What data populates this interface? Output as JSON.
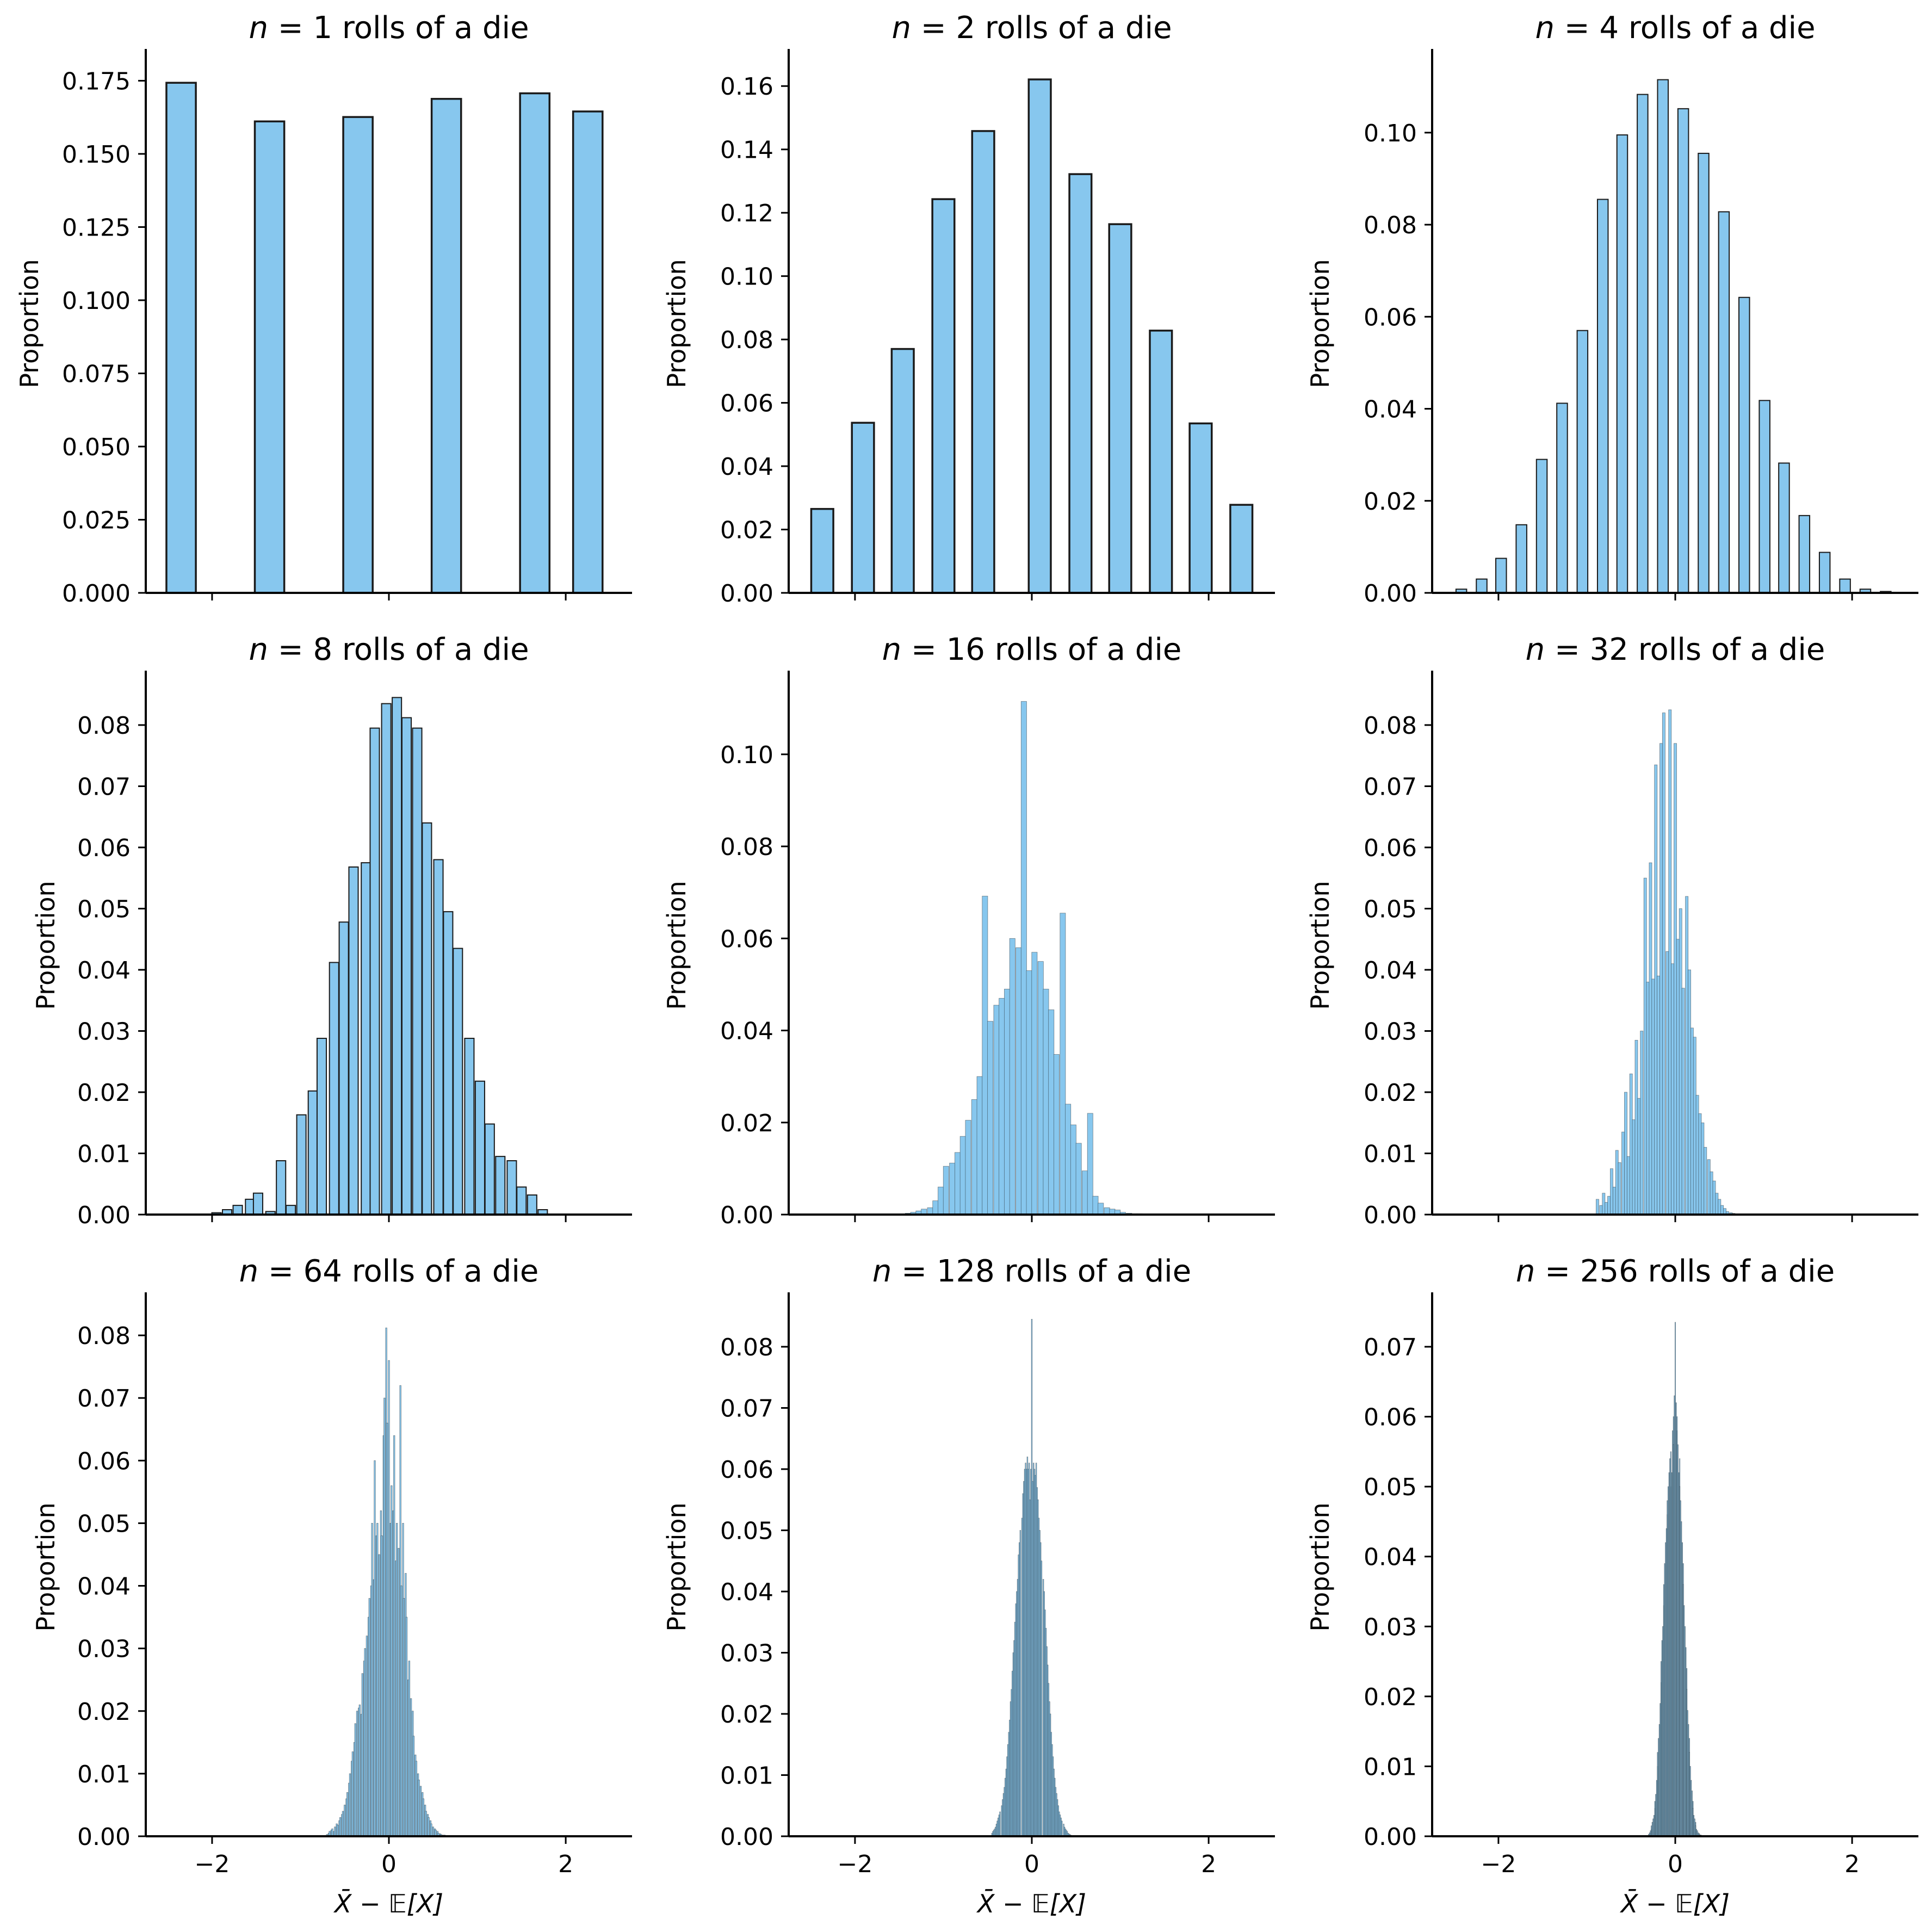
{
  "figure": {
    "bar_fill": "#87C7EE",
    "bar_edge": "#1a1a1a"
  },
  "chart_data": [
    {
      "type": "bar",
      "n": 1,
      "title_prefix": "n",
      "title_suffix": " = 1 rolls of a die",
      "ylabel": "Proportion",
      "xlabel": "",
      "xlim": [
        -2.75,
        2.75
      ],
      "ylim": [
        0,
        0.184
      ],
      "xticks": [
        -2,
        0,
        2
      ],
      "xtick_labels": [
        "",
        "",
        ""
      ],
      "yticks": [
        0,
        0.025,
        0.05,
        0.075,
        0.1,
        0.125,
        0.15,
        0.175
      ],
      "ytick_labels": [
        "0.000",
        "0.025",
        "0.050",
        "0.075",
        "0.100",
        "0.125",
        "0.150",
        "0.175"
      ],
      "bin_width": 0.333,
      "x": [
        -2.35,
        -1.35,
        -0.35,
        0.65,
        1.65,
        2.25
      ],
      "values": [
        0.1743,
        0.1611,
        0.1626,
        0.1688,
        0.1707,
        0.1645
      ]
    },
    {
      "type": "bar",
      "n": 2,
      "title_prefix": "n",
      "title_suffix": " = 2 rolls of a die",
      "ylabel": "Proportion",
      "xlabel": "",
      "xlim": [
        -2.75,
        2.75
      ],
      "ylim": [
        0,
        0.17
      ],
      "xticks": [
        -2,
        0,
        2
      ],
      "xtick_labels": [
        "",
        "",
        ""
      ],
      "yticks": [
        0,
        0.02,
        0.04,
        0.06,
        0.08,
        0.1,
        0.12,
        0.14,
        0.16
      ],
      "ytick_labels": [
        "0.00",
        "0.02",
        "0.04",
        "0.06",
        "0.08",
        "0.10",
        "0.12",
        "0.14",
        "0.16"
      ],
      "bin_width": 0.25,
      "x": [
        -2.37,
        -1.91,
        -1.46,
        -1.0,
        -0.55,
        0.09,
        0.55,
        1.0,
        1.46,
        1.91,
        2.37
      ],
      "values": [
        0.0265,
        0.0537,
        0.077,
        0.1243,
        0.1458,
        0.1621,
        0.1322,
        0.1164,
        0.0828,
        0.0535,
        0.0278
      ]
    },
    {
      "type": "bar",
      "n": 4,
      "title_prefix": "n",
      "title_suffix": " = 4 rolls of a die",
      "ylabel": "Proportion",
      "xlabel": "",
      "xlim": [
        -2.75,
        2.75
      ],
      "ylim": [
        0,
        0.117
      ],
      "xticks": [
        -2,
        0,
        2
      ],
      "xtick_labels": [
        "",
        "",
        ""
      ],
      "yticks": [
        0,
        0.02,
        0.04,
        0.06,
        0.08,
        0.1
      ],
      "ytick_labels": [
        "0.00",
        "0.02",
        "0.04",
        "0.06",
        "0.08",
        "0.10"
      ],
      "bin_width": 0.12,
      "x": [
        -2.42,
        -2.19,
        -1.97,
        -1.74,
        -1.51,
        -1.28,
        -1.05,
        -0.82,
        -0.6,
        -0.37,
        -0.14,
        0.09,
        0.32,
        0.55,
        0.78,
        1.01,
        1.23,
        1.46,
        1.69,
        1.92,
        2.15,
        2.38
      ],
      "values": [
        0.0008,
        0.003,
        0.0075,
        0.0148,
        0.029,
        0.0412,
        0.057,
        0.0855,
        0.0995,
        0.1083,
        0.1115,
        0.1052,
        0.0955,
        0.0828,
        0.0642,
        0.0418,
        0.0282,
        0.0168,
        0.0088,
        0.003,
        0.0008,
        0.0003
      ]
    },
    {
      "type": "bar",
      "n": 8,
      "title_prefix": "n",
      "title_suffix": " = 8 rolls of a die",
      "ylabel": "Proportion",
      "xlabel": "",
      "xlim": [
        -2.75,
        2.75
      ],
      "ylim": [
        0,
        0.088
      ],
      "xticks": [
        -2,
        0,
        2
      ],
      "xtick_labels": [
        "",
        "",
        ""
      ],
      "yticks": [
        0,
        0.01,
        0.02,
        0.03,
        0.04,
        0.05,
        0.06,
        0.07,
        0.08
      ],
      "ytick_labels": [
        "0.00",
        "0.01",
        "0.02",
        "0.03",
        "0.04",
        "0.05",
        "0.06",
        "0.07",
        "0.08"
      ],
      "bin_width": 0.105,
      "x": [
        -1.95,
        -1.83,
        -1.71,
        -1.57,
        -1.48,
        -1.34,
        -1.22,
        -1.11,
        -0.99,
        -0.86,
        -0.76,
        -0.62,
        -0.51,
        -0.4,
        -0.26,
        -0.16,
        -0.03,
        0.09,
        0.2,
        0.32,
        0.43,
        0.56,
        0.67,
        0.78,
        0.91,
        1.03,
        1.14,
        1.26,
        1.39,
        1.5,
        1.62,
        1.74
      ],
      "values": [
        0.0003,
        0.0008,
        0.0015,
        0.0025,
        0.0035,
        0.0005,
        0.0088,
        0.0015,
        0.0163,
        0.0202,
        0.0288,
        0.0412,
        0.0478,
        0.0568,
        0.0575,
        0.0795,
        0.0835,
        0.0845,
        0.0812,
        0.0795,
        0.064,
        0.058,
        0.0495,
        0.0435,
        0.0288,
        0.0218,
        0.0148,
        0.0095,
        0.0088,
        0.0045,
        0.0032,
        0.0008
      ]
    },
    {
      "type": "bar",
      "n": 16,
      "title_prefix": "n",
      "title_suffix": " = 16 rolls of a die",
      "ylabel": "Proportion",
      "xlabel": "",
      "xlim": [
        -2.75,
        2.75
      ],
      "ylim": [
        0,
        0.117
      ],
      "xticks": [
        -2,
        0,
        2
      ],
      "xtick_labels": [
        "",
        "",
        ""
      ],
      "yticks": [
        0,
        0.02,
        0.04,
        0.06,
        0.08,
        0.1
      ],
      "ytick_labels": [
        "0.00",
        "0.02",
        "0.04",
        "0.06",
        "0.08",
        "0.10"
      ],
      "bin_width": 0.0625,
      "x": [
        -1.4,
        -1.34,
        -1.28,
        -1.22,
        -1.15,
        -1.09,
        -1.03,
        -0.97,
        -0.9,
        -0.84,
        -0.78,
        -0.72,
        -0.65,
        -0.59,
        -0.53,
        -0.47,
        -0.4,
        -0.34,
        -0.28,
        -0.22,
        -0.15,
        -0.09,
        -0.03,
        0.03,
        0.1,
        0.16,
        0.22,
        0.28,
        0.35,
        0.41,
        0.47,
        0.53,
        0.6,
        0.66,
        0.72,
        0.78,
        0.85,
        0.91,
        0.97,
        1.03,
        1.1,
        1.16,
        1.22,
        1.28,
        1.35
      ],
      "values": [
        0.0003,
        0.0005,
        0.0008,
        0.0012,
        0.0015,
        0.003,
        0.006,
        0.0105,
        0.0112,
        0.0135,
        0.017,
        0.0205,
        0.025,
        0.03,
        0.0692,
        0.042,
        0.0455,
        0.047,
        0.049,
        0.06,
        0.058,
        0.1115,
        0.053,
        0.057,
        0.055,
        0.049,
        0.0445,
        0.0348,
        0.0655,
        0.024,
        0.0195,
        0.0155,
        0.0095,
        0.022,
        0.004,
        0.0025,
        0.0015,
        0.0012,
        0.001,
        0.0005,
        0.0003,
        0.0002,
        0.0002,
        0.0001,
        0.0001
      ]
    },
    {
      "type": "bar",
      "n": 32,
      "title_prefix": "n",
      "title_suffix": " = 32 rolls of a die",
      "ylabel": "Proportion",
      "xlabel": "",
      "xlim": [
        -2.75,
        2.75
      ],
      "ylim": [
        0,
        0.088
      ],
      "xticks": [
        -2,
        0,
        2
      ],
      "xtick_labels": [
        "",
        "",
        ""
      ],
      "yticks": [
        0,
        0.01,
        0.02,
        0.03,
        0.04,
        0.05,
        0.06,
        0.07,
        0.08
      ],
      "ytick_labels": [
        "0.00",
        "0.01",
        "0.02",
        "0.03",
        "0.04",
        "0.05",
        "0.06",
        "0.07",
        "0.08"
      ],
      "bin_width": 0.0313,
      "x": [
        -0.88,
        -0.84,
        -0.81,
        -0.78,
        -0.75,
        -0.72,
        -0.69,
        -0.66,
        -0.63,
        -0.59,
        -0.56,
        -0.53,
        -0.5,
        -0.47,
        -0.44,
        -0.41,
        -0.38,
        -0.34,
        -0.31,
        -0.28,
        -0.25,
        -0.22,
        -0.19,
        -0.16,
        -0.13,
        -0.09,
        -0.06,
        -0.03,
        0.0,
        0.03,
        0.06,
        0.09,
        0.13,
        0.16,
        0.19,
        0.22,
        0.25,
        0.28,
        0.31,
        0.34,
        0.38,
        0.41,
        0.44,
        0.47,
        0.5,
        0.53,
        0.56,
        0.59,
        0.63,
        0.66,
        0.69,
        0.72,
        0.75,
        0.78,
        0.81,
        0.84,
        0.88,
        0.91
      ],
      "values": [
        0.0025,
        0.0015,
        0.0035,
        0.002,
        0.003,
        0.0075,
        0.0045,
        0.0105,
        0.0085,
        0.0135,
        0.02,
        0.0095,
        0.023,
        0.0155,
        0.0285,
        0.019,
        0.03,
        0.055,
        0.038,
        0.0575,
        0.0385,
        0.0735,
        0.039,
        0.077,
        0.082,
        0.043,
        0.0825,
        0.041,
        0.077,
        0.045,
        0.05,
        0.037,
        0.052,
        0.04,
        0.0305,
        0.029,
        0.0195,
        0.0165,
        0.015,
        0.011,
        0.009,
        0.007,
        0.0055,
        0.0035,
        0.0025,
        0.0015,
        0.001,
        0.0005,
        0.0003,
        0.0002,
        0.0001,
        0.0001,
        0.0001,
        0.0001,
        0.0001,
        0.0001,
        0.0001,
        0.0001
      ]
    },
    {
      "type": "bar",
      "n": 64,
      "title_prefix": "n",
      "title_suffix": " = 64 rolls of a die",
      "ylabel": "Proportion",
      "xlabel": "X̄ − 𝔼[X]",
      "xlim": [
        -2.75,
        2.75
      ],
      "ylim": [
        0,
        0.086
      ],
      "xticks": [
        -2,
        0,
        2
      ],
      "xtick_labels": [
        "−2",
        "0",
        "2"
      ],
      "yticks": [
        0,
        0.01,
        0.02,
        0.03,
        0.04,
        0.05,
        0.06,
        0.07,
        0.08
      ],
      "ytick_labels": [
        "0.00",
        "0.01",
        "0.02",
        "0.03",
        "0.04",
        "0.05",
        "0.06",
        "0.07",
        "0.08"
      ],
      "bin_width": 0.0156,
      "x": [
        -0.7,
        -0.68,
        -0.67,
        -0.65,
        -0.64,
        -0.62,
        -0.61,
        -0.59,
        -0.58,
        -0.56,
        -0.55,
        -0.53,
        -0.52,
        -0.5,
        -0.48,
        -0.47,
        -0.45,
        -0.44,
        -0.42,
        -0.41,
        -0.39,
        -0.38,
        -0.36,
        -0.34,
        -0.33,
        -0.31,
        -0.3,
        -0.28,
        -0.27,
        -0.25,
        -0.23,
        -0.22,
        -0.2,
        -0.19,
        -0.17,
        -0.16,
        -0.14,
        -0.13,
        -0.11,
        -0.09,
        -0.08,
        -0.06,
        -0.05,
        -0.03,
        -0.02,
        0.0,
        0.02,
        0.03,
        0.05,
        0.06,
        0.08,
        0.09,
        0.11,
        0.13,
        0.14,
        0.16,
        0.17,
        0.19,
        0.2,
        0.22,
        0.23,
        0.25,
        0.27,
        0.28,
        0.3,
        0.31,
        0.33,
        0.34,
        0.36,
        0.38,
        0.39,
        0.41,
        0.42,
        0.44,
        0.45,
        0.47,
        0.48,
        0.5,
        0.52,
        0.53,
        0.55,
        0.56,
        0.58,
        0.59,
        0.61,
        0.63,
        0.64,
        0.66
      ],
      "values": [
        0.0003,
        0.0005,
        0.0008,
        0.001,
        0.0012,
        0.0008,
        0.0015,
        0.002,
        0.0018,
        0.0025,
        0.003,
        0.0035,
        0.004,
        0.005,
        0.006,
        0.007,
        0.0085,
        0.01,
        0.012,
        0.0135,
        0.015,
        0.018,
        0.02,
        0.0205,
        0.021,
        0.0195,
        0.026,
        0.028,
        0.03,
        0.032,
        0.035,
        0.038,
        0.04,
        0.05,
        0.041,
        0.06,
        0.048,
        0.05,
        0.045,
        0.052,
        0.048,
        0.064,
        0.07,
        0.0812,
        0.066,
        0.076,
        0.05,
        0.056,
        0.052,
        0.064,
        0.044,
        0.05,
        0.046,
        0.072,
        0.04,
        0.05,
        0.038,
        0.042,
        0.035,
        0.025,
        0.028,
        0.022,
        0.02,
        0.016,
        0.013,
        0.012,
        0.01,
        0.009,
        0.008,
        0.007,
        0.006,
        0.005,
        0.004,
        0.0035,
        0.003,
        0.0025,
        0.002,
        0.0015,
        0.0012,
        0.001,
        0.0008,
        0.0005,
        0.0004,
        0.0003,
        0.0002,
        0.0002,
        0.0001,
        0.0001
      ]
    },
    {
      "type": "bar",
      "n": 128,
      "title_prefix": "n",
      "title_suffix": " = 128 rolls of a die",
      "ylabel": "Proportion",
      "xlabel": "X̄ − 𝔼[X]",
      "xlim": [
        -2.75,
        2.75
      ],
      "ylim": [
        0,
        0.088
      ],
      "xticks": [
        -2,
        0,
        2
      ],
      "xtick_labels": [
        "−2",
        "0",
        "2"
      ],
      "yticks": [
        0,
        0.01,
        0.02,
        0.03,
        0.04,
        0.05,
        0.06,
        0.07,
        0.08
      ],
      "ytick_labels": [
        "0.00",
        "0.01",
        "0.02",
        "0.03",
        "0.04",
        "0.05",
        "0.06",
        "0.07",
        "0.08"
      ],
      "bin_width": 0.0104,
      "x": [
        -0.45,
        -0.44,
        -0.43,
        -0.42,
        -0.41,
        -0.4,
        -0.39,
        -0.38,
        -0.37,
        -0.36,
        -0.34,
        -0.33,
        -0.32,
        -0.31,
        -0.3,
        -0.29,
        -0.28,
        -0.27,
        -0.26,
        -0.25,
        -0.24,
        -0.23,
        -0.22,
        -0.21,
        -0.2,
        -0.19,
        -0.18,
        -0.17,
        -0.16,
        -0.15,
        -0.14,
        -0.13,
        -0.11,
        -0.1,
        -0.09,
        -0.08,
        -0.07,
        -0.06,
        -0.05,
        -0.04,
        -0.03,
        -0.02,
        -0.01,
        0.0,
        0.01,
        0.02,
        0.03,
        0.04,
        0.05,
        0.06,
        0.07,
        0.08,
        0.09,
        0.1,
        0.11,
        0.13,
        0.14,
        0.15,
        0.16,
        0.17,
        0.18,
        0.19,
        0.2,
        0.21,
        0.22,
        0.23,
        0.24,
        0.25,
        0.26,
        0.27,
        0.28,
        0.29,
        0.3,
        0.31,
        0.32,
        0.33,
        0.34,
        0.36,
        0.37,
        0.38,
        0.39,
        0.4,
        0.41,
        0.42,
        0.43,
        0.44
      ],
      "values": [
        0.0005,
        0.0008,
        0.001,
        0.0012,
        0.0015,
        0.002,
        0.0025,
        0.003,
        0.0035,
        0.004,
        0.005,
        0.006,
        0.007,
        0.008,
        0.0095,
        0.011,
        0.013,
        0.015,
        0.017,
        0.019,
        0.022,
        0.024,
        0.027,
        0.03,
        0.032,
        0.035,
        0.038,
        0.04,
        0.042,
        0.046,
        0.048,
        0.05,
        0.052,
        0.056,
        0.058,
        0.06,
        0.061,
        0.06,
        0.062,
        0.06,
        0.061,
        0.055,
        0.06,
        0.0845,
        0.058,
        0.061,
        0.06,
        0.059,
        0.061,
        0.057,
        0.055,
        0.052,
        0.05,
        0.048,
        0.045,
        0.042,
        0.04,
        0.037,
        0.034,
        0.031,
        0.028,
        0.025,
        0.022,
        0.02,
        0.017,
        0.015,
        0.013,
        0.011,
        0.0095,
        0.008,
        0.007,
        0.006,
        0.005,
        0.004,
        0.0035,
        0.003,
        0.0025,
        0.002,
        0.0015,
        0.0012,
        0.001,
        0.0008,
        0.0005,
        0.0004,
        0.0003,
        0.0002
      ]
    },
    {
      "type": "bar",
      "n": 256,
      "title_prefix": "n",
      "title_suffix": " = 256 rolls of a die",
      "ylabel": "Proportion",
      "xlabel": "X̄ − 𝔼[X]",
      "xlim": [
        -2.75,
        2.75
      ],
      "ylim": [
        0,
        0.077
      ],
      "xticks": [
        -2,
        0,
        2
      ],
      "xtick_labels": [
        "−2",
        "0",
        "2"
      ],
      "yticks": [
        0,
        0.01,
        0.02,
        0.03,
        0.04,
        0.05,
        0.06,
        0.07
      ],
      "ytick_labels": [
        "0.00",
        "0.01",
        "0.02",
        "0.03",
        "0.04",
        "0.05",
        "0.06",
        "0.07"
      ],
      "bin_width": 0.0078,
      "x": [
        -0.3,
        -0.29,
        -0.28,
        -0.27,
        -0.27,
        -0.26,
        -0.25,
        -0.24,
        -0.23,
        -0.23,
        -0.22,
        -0.21,
        -0.2,
        -0.2,
        -0.19,
        -0.18,
        -0.17,
        -0.16,
        -0.16,
        -0.15,
        -0.14,
        -0.13,
        -0.13,
        -0.12,
        -0.11,
        -0.1,
        -0.09,
        -0.09,
        -0.08,
        -0.07,
        -0.06,
        -0.05,
        -0.05,
        -0.04,
        -0.03,
        -0.02,
        -0.02,
        -0.01,
        0.0,
        0.01,
        0.02,
        0.02,
        0.03,
        0.04,
        0.05,
        0.05,
        0.06,
        0.07,
        0.08,
        0.09,
        0.09,
        0.1,
        0.11,
        0.12,
        0.13,
        0.13,
        0.14,
        0.15,
        0.16,
        0.16,
        0.17,
        0.18,
        0.19,
        0.2,
        0.2,
        0.21,
        0.22,
        0.23,
        0.23,
        0.24,
        0.25,
        0.26,
        0.27,
        0.27,
        0.28,
        0.29,
        0.3
      ],
      "values": [
        0.0003,
        0.0005,
        0.0008,
        0.001,
        0.0015,
        0.002,
        0.0025,
        0.003,
        0.004,
        0.005,
        0.006,
        0.008,
        0.01,
        0.012,
        0.014,
        0.016,
        0.019,
        0.022,
        0.025,
        0.028,
        0.03,
        0.033,
        0.036,
        0.039,
        0.042,
        0.044,
        0.046,
        0.048,
        0.05,
        0.052,
        0.054,
        0.05,
        0.055,
        0.052,
        0.058,
        0.06,
        0.056,
        0.063,
        0.0735,
        0.062,
        0.058,
        0.06,
        0.056,
        0.052,
        0.054,
        0.05,
        0.048,
        0.045,
        0.042,
        0.039,
        0.036,
        0.033,
        0.03,
        0.027,
        0.024,
        0.021,
        0.018,
        0.016,
        0.014,
        0.012,
        0.01,
        0.008,
        0.0065,
        0.005,
        0.004,
        0.003,
        0.0025,
        0.002,
        0.0015,
        0.001,
        0.0008,
        0.0005,
        0.0004,
        0.0003,
        0.0002,
        0.0002,
        0.0001
      ]
    }
  ]
}
